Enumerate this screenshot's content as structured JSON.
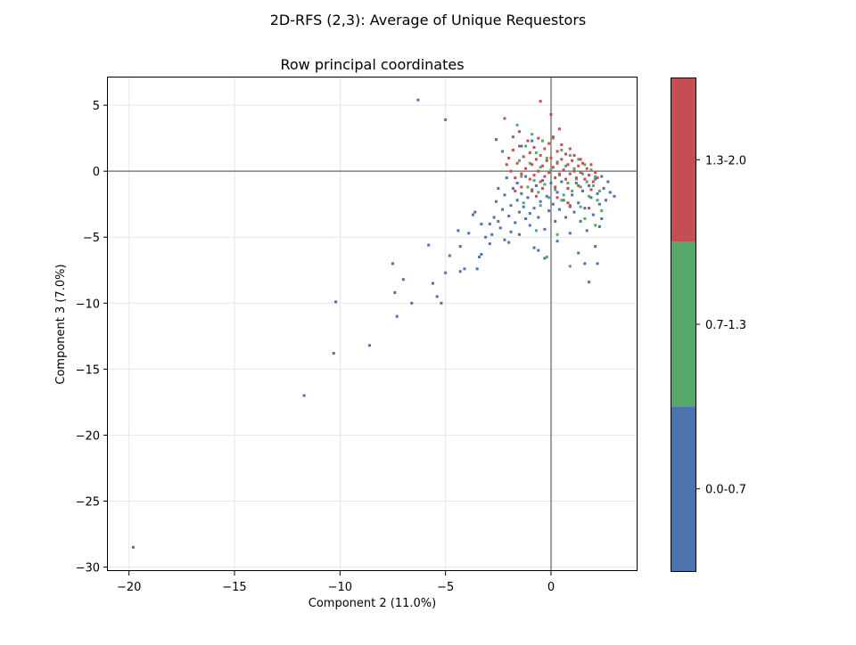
{
  "chart_data": {
    "type": "scatter",
    "suptitle": "2D-RFS (2,3): Average of Unique Requestors",
    "title": "Row principal coordinates",
    "xlabel": "Component 2 (11.0%)",
    "ylabel": "Component 3 (7.0%)",
    "xlim": [
      -21,
      4.1
    ],
    "ylim": [
      -30.3,
      7.1
    ],
    "xticks": [
      -20,
      -15,
      -10,
      -5,
      0
    ],
    "xtick_labels": [
      "−20",
      "−15",
      "−10",
      "−5",
      "0"
    ],
    "yticks": [
      5,
      0,
      -5,
      -10,
      -15,
      -20,
      -25,
      -30
    ],
    "ytick_labels": [
      "5",
      "0",
      "−5",
      "−10",
      "−15",
      "−20",
      "−25",
      "−30"
    ],
    "grid": true,
    "reference_lines": {
      "x": 0,
      "y": 0
    },
    "colorbar": {
      "position": "right",
      "bins": [
        {
          "label": "1.3-2.0",
          "color": "#c44e52"
        },
        {
          "label": "0.7-1.3",
          "color": "#55a868"
        },
        {
          "label": "0.0-0.7",
          "color": "#4c72b0"
        }
      ]
    },
    "series": [
      {
        "color": "#4c72b0",
        "bin": "0.0-0.7",
        "points": [
          [
            -19.8,
            -28.5
          ],
          [
            -11.7,
            -17.0
          ],
          [
            -10.3,
            -13.8
          ],
          [
            -10.2,
            -9.9
          ],
          [
            -8.6,
            -13.2
          ],
          [
            -7.5,
            -7.0
          ],
          [
            -7.4,
            -9.2
          ],
          [
            -7.3,
            -11.0
          ],
          [
            -7.0,
            -8.2
          ],
          [
            -6.6,
            -10.0
          ],
          [
            -6.3,
            5.4
          ],
          [
            -5.8,
            -5.6
          ],
          [
            -5.6,
            -8.5
          ],
          [
            -5.4,
            -9.5
          ],
          [
            -5.2,
            -10.0
          ],
          [
            -5.0,
            3.9
          ],
          [
            -5.0,
            -7.7
          ],
          [
            -4.8,
            -6.4
          ],
          [
            -4.4,
            -4.5
          ],
          [
            -4.3,
            -7.6
          ],
          [
            -4.3,
            -5.7
          ],
          [
            -4.1,
            -7.4
          ],
          [
            -3.9,
            -4.7
          ],
          [
            -3.7,
            -3.3
          ],
          [
            -3.6,
            -3.1
          ],
          [
            -3.5,
            -7.4
          ],
          [
            -3.4,
            -6.5
          ],
          [
            -3.3,
            -6.3
          ],
          [
            -3.3,
            -4.0
          ],
          [
            -3.1,
            -5.0
          ],
          [
            -2.9,
            -4.0
          ],
          [
            -2.9,
            -5.5
          ],
          [
            -2.8,
            -4.8
          ],
          [
            -2.7,
            -3.5
          ],
          [
            -2.6,
            -2.3
          ],
          [
            -2.6,
            2.4
          ],
          [
            -2.5,
            -1.3
          ],
          [
            -2.5,
            -3.8
          ],
          [
            -2.4,
            -4.3
          ],
          [
            -2.3,
            -2.9
          ],
          [
            -2.3,
            1.5
          ],
          [
            -2.2,
            -5.2
          ],
          [
            -2.2,
            -1.8
          ],
          [
            -2.1,
            -0.5
          ],
          [
            -2.0,
            -3.4
          ],
          [
            -2.0,
            -5.4
          ],
          [
            -1.9,
            -2.6
          ],
          [
            -1.9,
            -4.6
          ],
          [
            -1.8,
            2.6
          ],
          [
            -1.8,
            -1.3
          ],
          [
            -1.7,
            -3.9
          ],
          [
            -1.6,
            -2.2
          ],
          [
            -1.6,
            -0.9
          ],
          [
            -1.5,
            -3.1
          ],
          [
            -1.5,
            -4.8
          ],
          [
            -1.4,
            -1.7
          ],
          [
            -1.4,
            1.9
          ],
          [
            -1.3,
            -2.7
          ],
          [
            -1.2,
            -3.6
          ],
          [
            -1.2,
            -0.4
          ],
          [
            -1.1,
            -2.0
          ],
          [
            -1.0,
            -3.2
          ],
          [
            -1.0,
            -4.1
          ],
          [
            -0.9,
            -1.5
          ],
          [
            -0.9,
            2.3
          ],
          [
            -0.8,
            -2.8
          ],
          [
            -0.8,
            -5.8
          ],
          [
            -0.7,
            -1.1
          ],
          [
            -0.6,
            -3.5
          ],
          [
            -0.6,
            -6.0
          ],
          [
            -0.5,
            -2.3
          ],
          [
            -0.4,
            -0.7
          ],
          [
            -0.3,
            -4.4
          ],
          [
            -0.3,
            -6.6
          ],
          [
            -0.2,
            -1.9
          ],
          [
            -0.1,
            -3.0
          ],
          [
            0.0,
            -0.9
          ],
          [
            0.1,
            -2.5
          ],
          [
            0.2,
            -3.8
          ],
          [
            0.3,
            -1.6
          ],
          [
            0.3,
            -5.3
          ],
          [
            0.4,
            -2.9
          ],
          [
            0.5,
            -0.8
          ],
          [
            0.6,
            -2.2
          ],
          [
            0.7,
            -3.5
          ],
          [
            0.8,
            -1.3
          ],
          [
            0.9,
            -4.7
          ],
          [
            0.9,
            -2.6
          ],
          [
            1.0,
            -1.8
          ],
          [
            1.1,
            -3.1
          ],
          [
            1.2,
            -0.9
          ],
          [
            1.3,
            -2.4
          ],
          [
            1.3,
            -6.2
          ],
          [
            1.4,
            -3.8
          ],
          [
            1.5,
            -1.5
          ],
          [
            1.6,
            -2.8
          ],
          [
            1.6,
            -7.0
          ],
          [
            1.7,
            -4.5
          ],
          [
            1.8,
            -1.1
          ],
          [
            1.8,
            -8.4
          ],
          [
            1.9,
            -2.0
          ],
          [
            2.0,
            -3.3
          ],
          [
            2.1,
            -0.6
          ],
          [
            2.1,
            -5.7
          ],
          [
            2.2,
            -1.7
          ],
          [
            2.2,
            -7.0
          ],
          [
            2.3,
            -2.5
          ],
          [
            2.4,
            -0.4
          ],
          [
            2.4,
            -3.6
          ],
          [
            2.5,
            -1.3
          ],
          [
            2.6,
            -2.2
          ],
          [
            2.7,
            -0.8
          ],
          [
            2.8,
            -1.6
          ],
          [
            3.0,
            -1.9
          ],
          [
            2.3,
            -4.2
          ]
        ]
      },
      {
        "color": "#55a868",
        "bin": "0.7-1.3",
        "points": [
          [
            -1.6,
            3.5
          ],
          [
            -1.5,
            0.8
          ],
          [
            -1.4,
            -0.4
          ],
          [
            -1.2,
            1.9
          ],
          [
            -1.1,
            -1.2
          ],
          [
            -1.0,
            0.6
          ],
          [
            -0.9,
            2.8
          ],
          [
            -0.8,
            -0.7
          ],
          [
            -0.7,
            1.4
          ],
          [
            -0.6,
            -1.6
          ],
          [
            -0.5,
            0.3
          ],
          [
            -0.4,
            2.3
          ],
          [
            -0.3,
            -1.0
          ],
          [
            -0.2,
            1.0
          ],
          [
            -0.1,
            -2.0
          ],
          [
            0.0,
            0.1
          ],
          [
            0.1,
            2.5
          ],
          [
            0.2,
            -1.4
          ],
          [
            0.3,
            0.7
          ],
          [
            0.4,
            -0.3
          ],
          [
            0.5,
            1.6
          ],
          [
            0.6,
            -1.8
          ],
          [
            0.7,
            0.4
          ],
          [
            0.8,
            -0.9
          ],
          [
            0.9,
            1.2
          ],
          [
            1.0,
            -1.5
          ],
          [
            1.1,
            0.2
          ],
          [
            1.2,
            -0.6
          ],
          [
            1.3,
            0.9
          ],
          [
            1.4,
            -1.2
          ],
          [
            1.5,
            -0.2
          ],
          [
            1.6,
            0.5
          ],
          [
            1.7,
            -0.8
          ],
          [
            1.8,
            -1.9
          ],
          [
            1.9,
            0.1
          ],
          [
            2.0,
            -1.1
          ],
          [
            2.1,
            -0.4
          ],
          [
            2.2,
            -2.2
          ],
          [
            2.3,
            -1.5
          ],
          [
            2.4,
            -3.0
          ],
          [
            -0.7,
            -4.5
          ],
          [
            -0.5,
            -2.6
          ],
          [
            0.3,
            -4.8
          ],
          [
            0.9,
            -7.2
          ],
          [
            1.4,
            -2.7
          ],
          [
            2.1,
            -4.1
          ],
          [
            -0.2,
            -6.5
          ],
          [
            1.6,
            -3.6
          ],
          [
            0.5,
            -2.2
          ],
          [
            -1.3,
            -2.4
          ]
        ]
      },
      {
        "color": "#c44e52",
        "bin": "1.3-2.0",
        "points": [
          [
            -2.2,
            4.0
          ],
          [
            -0.5,
            5.3
          ],
          [
            0.0,
            4.3
          ],
          [
            0.4,
            3.2
          ],
          [
            -1.5,
            3.0
          ],
          [
            -2.0,
            1.0
          ],
          [
            -1.9,
            0.0
          ],
          [
            -1.8,
            1.6
          ],
          [
            -1.7,
            -0.5
          ],
          [
            -1.6,
            0.6
          ],
          [
            -1.5,
            1.9
          ],
          [
            -1.4,
            -0.2
          ],
          [
            -1.3,
            1.1
          ],
          [
            -1.2,
            0.2
          ],
          [
            -1.1,
            2.3
          ],
          [
            -1.0,
            -0.6
          ],
          [
            -1.0,
            1.4
          ],
          [
            -0.9,
            0.5
          ],
          [
            -0.8,
            -0.3
          ],
          [
            -0.8,
            1.8
          ],
          [
            -0.7,
            0.9
          ],
          [
            -0.6,
            0.0
          ],
          [
            -0.6,
            2.5
          ],
          [
            -0.5,
            -0.8
          ],
          [
            -0.5,
            1.2
          ],
          [
            -0.4,
            0.4
          ],
          [
            -0.3,
            1.7
          ],
          [
            -0.3,
            -0.4
          ],
          [
            -0.2,
            0.8
          ],
          [
            -0.1,
            2.1
          ],
          [
            -0.1,
            -0.1
          ],
          [
            0.0,
            1.0
          ],
          [
            0.1,
            0.3
          ],
          [
            0.1,
            2.6
          ],
          [
            0.2,
            -0.5
          ],
          [
            0.3,
            1.5
          ],
          [
            0.3,
            0.6
          ],
          [
            0.4,
            -0.2
          ],
          [
            0.5,
            2.0
          ],
          [
            0.5,
            0.9
          ],
          [
            0.6,
            0.1
          ],
          [
            0.7,
            1.3
          ],
          [
            0.7,
            -0.6
          ],
          [
            0.8,
            0.5
          ],
          [
            0.9,
            1.7
          ],
          [
            0.9,
            -0.2
          ],
          [
            1.0,
            0.8
          ],
          [
            1.1,
            0.0
          ],
          [
            1.1,
            1.2
          ],
          [
            1.2,
            -0.5
          ],
          [
            1.3,
            0.4
          ],
          [
            1.4,
            0.9
          ],
          [
            1.4,
            -0.1
          ],
          [
            1.5,
            0.6
          ],
          [
            1.6,
            -0.6
          ],
          [
            1.7,
            0.2
          ],
          [
            1.8,
            -0.3
          ],
          [
            1.9,
            0.5
          ],
          [
            2.0,
            -0.8
          ],
          [
            2.1,
            -0.1
          ],
          [
            -1.4,
            -1.2
          ],
          [
            -0.9,
            -1.4
          ],
          [
            -0.4,
            -1.3
          ],
          [
            0.2,
            -1.2
          ],
          [
            0.8,
            -1.3
          ],
          [
            1.3,
            -1.1
          ],
          [
            1.9,
            -1.4
          ],
          [
            -1.7,
            -1.5
          ],
          [
            2.2,
            -0.5
          ],
          [
            -2.1,
            0.5
          ],
          [
            0.8,
            -2.4
          ],
          [
            0.9,
            -2.7
          ],
          [
            1.8,
            -2.8
          ],
          [
            -0.7,
            -1.9
          ],
          [
            0.3,
            -2.0
          ]
        ]
      }
    ]
  }
}
